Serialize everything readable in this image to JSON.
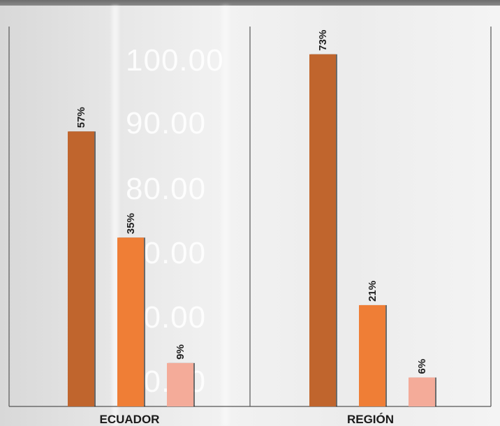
{
  "chart_data": {
    "type": "bar",
    "categories": [
      "ECUADOR",
      "REGIÓN"
    ],
    "series": [
      {
        "values": [
          57,
          73
        ],
        "color": "#c0652d"
      },
      {
        "values": [
          35,
          21
        ],
        "color": "#ef7e36"
      },
      {
        "values": [
          9,
          6
        ],
        "color": "#f4ab99"
      }
    ],
    "data_labels": [
      [
        "57%",
        "35%",
        "9%"
      ],
      [
        "73%",
        "21%",
        "6%"
      ]
    ],
    "ylim": [
      0,
      76
    ],
    "xlabel": "",
    "ylabel": "",
    "title": "",
    "grid": false
  },
  "background_watermark": [
    "100.00",
    "90.00",
    "80.00",
    "70.00",
    "60.00",
    "50.00"
  ]
}
